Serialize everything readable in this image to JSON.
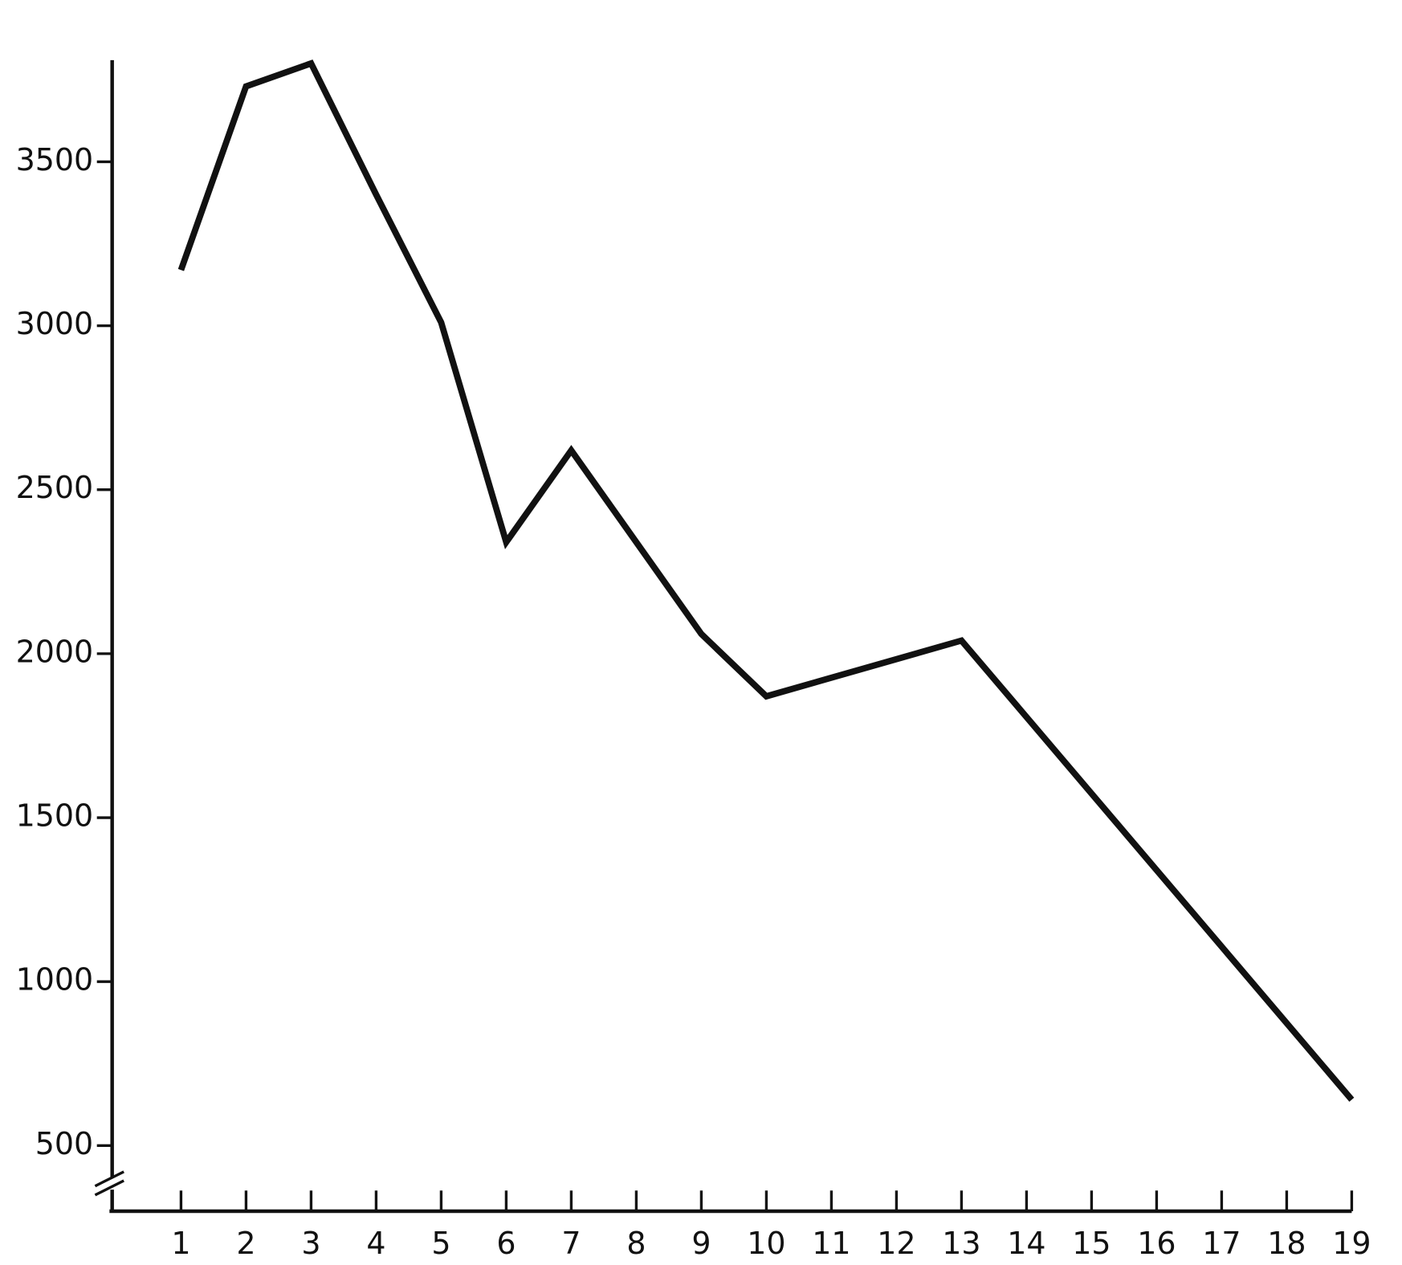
{
  "chart_data": {
    "type": "line",
    "x": [
      1,
      2,
      3,
      4,
      5,
      6,
      7,
      9,
      10,
      13,
      19
    ],
    "values": [
      3170,
      3730,
      3800,
      3400,
      3010,
      2340,
      2620,
      2060,
      1870,
      2040,
      640
    ],
    "color": "#111111",
    "xlim": [
      -0.1,
      19
    ],
    "xticks": [
      1,
      2,
      3,
      4,
      5,
      6,
      7,
      8,
      9,
      10,
      11,
      12,
      13,
      14,
      15,
      16,
      17,
      18,
      19
    ],
    "ylim": [
      300,
      3810
    ],
    "yticks": [
      500,
      1000,
      1500,
      2000,
      2500,
      3000,
      3500
    ],
    "grid": false
  }
}
